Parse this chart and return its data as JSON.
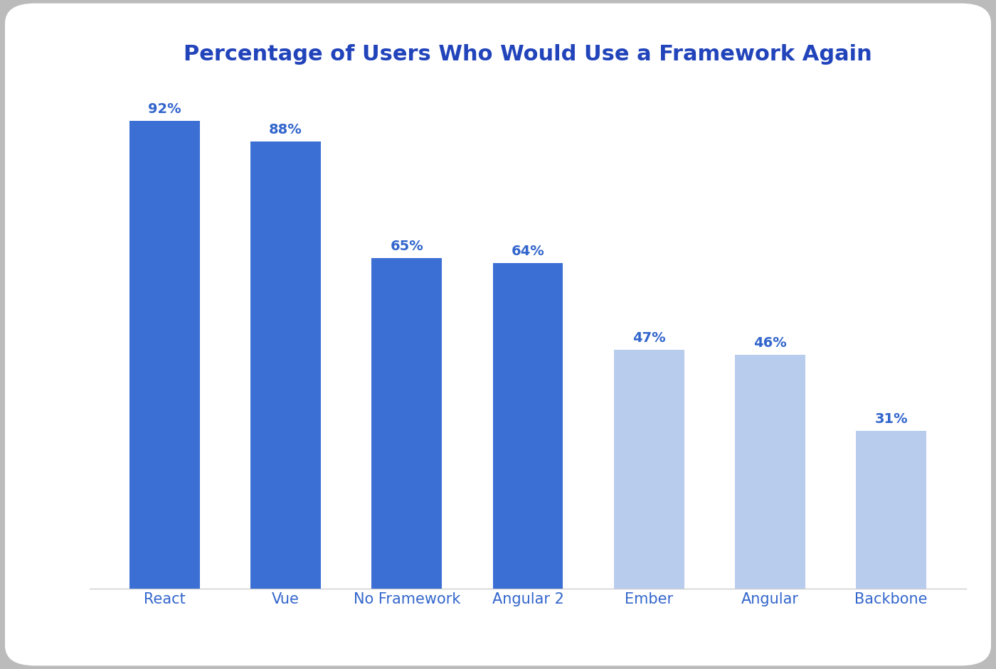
{
  "title": "Percentage of Users Who Would Use a Framework Again",
  "categories": [
    "React",
    "Vue",
    "No Framework",
    "Angular 2",
    "Ember",
    "Angular",
    "Backbone"
  ],
  "values": [
    92,
    88,
    65,
    64,
    47,
    46,
    31
  ],
  "dark_color": "#3B6FD4",
  "light_color": "#B8CCEE",
  "title_color": "#2244BB",
  "label_color": "#3366CC",
  "tick_color": "#3366CC",
  "outer_background": "#C8C8C8",
  "card_background": "#FFFFFF",
  "ylim": [
    0,
    100
  ],
  "title_fontsize": 22,
  "label_fontsize": 15,
  "value_fontsize": 14,
  "figsize": [
    14.0,
    9.41
  ],
  "dpi": 100
}
